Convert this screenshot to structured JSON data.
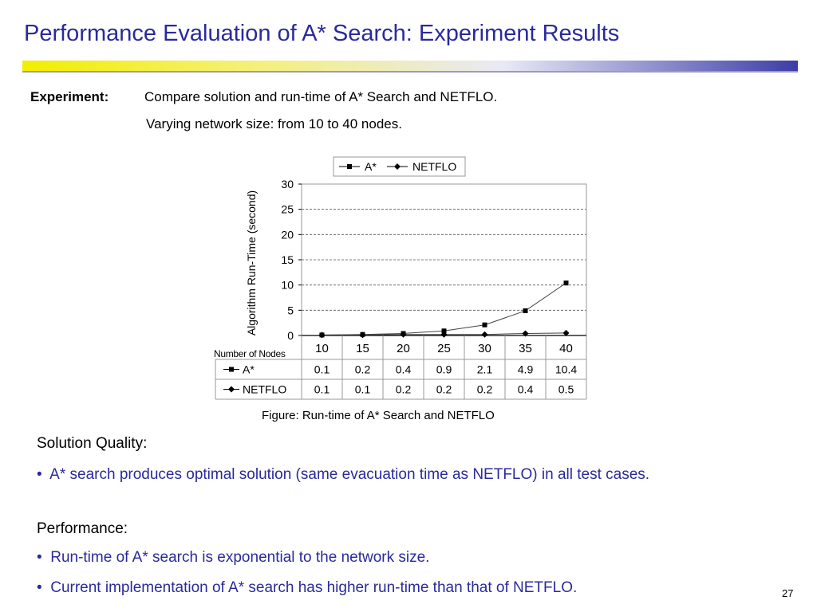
{
  "slide": {
    "title": "Performance Evaluation of A* Search: Experiment Results",
    "page_number": "27"
  },
  "experiment": {
    "label": "Experiment:",
    "line1": "Compare solution and run-time of A* Search and NETFLO.",
    "line2": "Varying network size: from 10 to 40 nodes."
  },
  "figure": {
    "caption": "Figure:  Run-time of A* Search and NETFLO"
  },
  "chart_data": {
    "type": "line",
    "ylabel": "Algorithm Run-Time (second)",
    "xlabel": "Number of Nodes",
    "categories": [
      "10",
      "15",
      "20",
      "25",
      "30",
      "35",
      "40"
    ],
    "ylim": [
      0,
      30
    ],
    "yticks": [
      0,
      5,
      10,
      15,
      20,
      25,
      30
    ],
    "grid": "horizontal dashed",
    "legend": "top",
    "series": [
      {
        "name": "A*",
        "marker": "square",
        "values": [
          0.1,
          0.2,
          0.4,
          0.9,
          2.1,
          4.9,
          10.4
        ]
      },
      {
        "name": "NETFLO",
        "marker": "diamond",
        "values": [
          0.1,
          0.1,
          0.2,
          0.2,
          0.2,
          0.4,
          0.5
        ]
      }
    ],
    "data_table": true
  },
  "body": {
    "solution_heading": "Solution Quality:",
    "solution_bullet": "A* search produces optimal solution (same evacuation time as NETFLO) in all test cases.",
    "performance_heading": "Performance:",
    "performance_bullets": [
      "Run-time of A* search is exponential to the network size.",
      "Current implementation of A* search has higher run-time than that of NETFLO."
    ]
  },
  "colors": {
    "title": "#2a2a9c",
    "bullet_text": "#2a2a9c"
  }
}
